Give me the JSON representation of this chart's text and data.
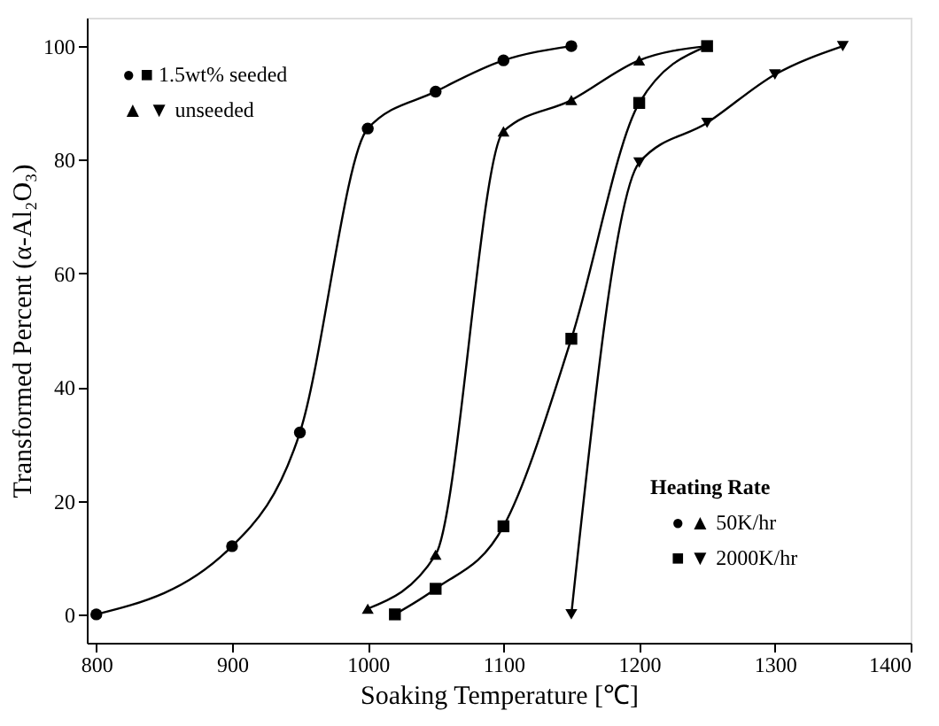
{
  "chart_data": {
    "type": "line",
    "xlabel": "Soaking Temperature [℃]",
    "ylabel": "Transformed Percent (α-Al₂O₃)",
    "xlim": [
      793,
      1400
    ],
    "xticks": [
      800,
      900,
      1000,
      1100,
      1200,
      1300,
      1400
    ],
    "ylim": [
      -5,
      105
    ],
    "yticks": [
      0,
      20,
      40,
      60,
      80,
      100
    ],
    "grid": false,
    "annotations": [
      "● ■ 1.5wt% seeded",
      "▲ ▼ unseeded",
      "Heating Rate",
      "● ▲ 50K/hr",
      "■ ▼ 2000K/hr"
    ],
    "series": [
      {
        "color": "#000000",
        "marker": "circle",
        "x": [
          800,
          900,
          950,
          1000,
          1050,
          1100,
          1150
        ],
        "values": [
          0,
          12,
          32,
          85.5,
          92,
          97.5,
          100
        ]
      },
      {
        "color": "#000000",
        "marker": "triangle",
        "x": [
          1000,
          1050,
          1100,
          1150,
          1200,
          1250
        ],
        "values": [
          1,
          10.5,
          85,
          90.5,
          97.5,
          100
        ]
      },
      {
        "color": "#000000",
        "marker": "square",
        "x": [
          1020,
          1050,
          1100,
          1150,
          1200,
          1250
        ],
        "values": [
          0,
          4.5,
          15.5,
          48.5,
          90,
          100
        ]
      },
      {
        "color": "#000000",
        "marker": "triangle-down",
        "x": [
          1150,
          1200,
          1250,
          1300,
          1350
        ],
        "values": [
          0,
          79.5,
          86.5,
          95,
          100
        ]
      }
    ]
  }
}
